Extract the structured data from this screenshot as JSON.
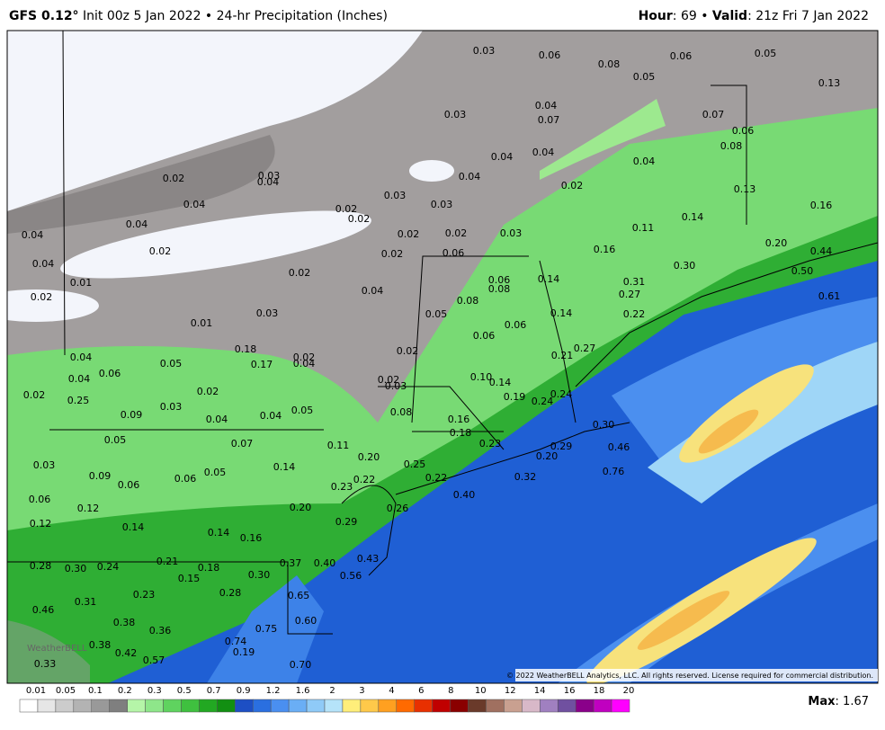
{
  "header": {
    "model": "GFS 0.12°",
    "title": "Init 00z 5 Jan 2022 • 24-hr Precipitation (Inches)",
    "hour_label": "Hour",
    "hour": ": 69 • ",
    "valid_label": "Valid",
    "valid": ": 21z Fri 7 Jan 2022"
  },
  "copyright": "© 2022 WeatherBELL Analytics, LLC. All rights reserved. License required for commercial distribution.",
  "watermark": "WeatherBELL",
  "map_labels": [
    "0.03",
    "0.06",
    "0.08",
    "0.06",
    "0.05",
    "0.05",
    "0.13",
    "0.03",
    "0.04",
    "0.07",
    "0.07",
    "0.06",
    "0.08",
    "0.04",
    "0.04",
    "0.04",
    "0.02",
    "0.03",
    "0.04",
    "0.04",
    "0.02",
    "0.13",
    "0.04",
    "0.03",
    "0.03",
    "0.16",
    "0.02",
    "0.02",
    "0.14",
    "0.04",
    "0.02",
    "0.02",
    "0.03",
    "0.11",
    "0.04",
    "0.20",
    "0.44",
    "0.02",
    "0.02",
    "0.06",
    "0.16",
    "0.04",
    "0.30",
    "0.50",
    "0.02",
    "0.01",
    "0.06",
    "0.14",
    "0.31",
    "0.02",
    "0.04",
    "0.08",
    "0.08",
    "0.27",
    "0.61",
    "0.03",
    "0.05",
    "0.14",
    "0.22",
    "0.01",
    "0.06",
    "0.06",
    "0.18",
    "0.02",
    "0.27",
    "0.21",
    "0.04",
    "0.05",
    "0.17",
    "0.02",
    "0.04",
    "0.06",
    "0.04",
    "0.02",
    "0.03",
    "0.14",
    "0.10",
    "0.02",
    "0.02",
    "0.19",
    "0.24",
    "0.24",
    "0.25",
    "0.03",
    "0.08",
    "0.05",
    "0.09",
    "0.04",
    "0.04",
    "0.16",
    "0.30",
    "0.18",
    "0.05",
    "0.07",
    "0.11",
    "0.23",
    "0.29",
    "0.46",
    "0.20",
    "0.03",
    "0.09",
    "0.14",
    "0.20",
    "0.25",
    "0.05",
    "0.06",
    "0.76",
    "0.06",
    "0.23",
    "0.22",
    "0.22",
    "0.32",
    "0.06",
    "0.12",
    "0.40",
    "0.26",
    "0.20",
    "0.12",
    "0.14",
    "0.29",
    "0.14",
    "0.16",
    "0.28",
    "0.30",
    "0.24",
    "0.21",
    "0.18",
    "0.15",
    "0.30",
    "0.37",
    "0.40",
    "0.43",
    "0.56",
    "0.23",
    "0.28",
    "0.65",
    "0.31",
    "0.46",
    "0.38",
    "0.36",
    "0.60",
    "0.75",
    "0.38",
    "0.42",
    "0.74",
    "0.19",
    "0.57",
    "0.33",
    "0.70"
  ],
  "legend": {
    "labels": [
      "0.01",
      "0.05",
      "0.1",
      "0.2",
      "0.3",
      "0.5",
      "0.7",
      "0.9",
      "1.2",
      "1.6",
      "2",
      "3",
      "4",
      "6",
      "8",
      "10",
      "12",
      "14",
      "16",
      "18",
      "20"
    ],
    "colors": [
      "#ffffff",
      "#e6e6e6",
      "#cccccc",
      "#b3b3b3",
      "#999999",
      "#7f7f7f",
      "#b5f5a8",
      "#8ee68a",
      "#5fd35f",
      "#3fc03f",
      "#22a822",
      "#128f12",
      "#1d4fc4",
      "#2a6fe0",
      "#4a8ff0",
      "#6aaef5",
      "#8fcaf7",
      "#b5e3f9",
      "#ffee7a",
      "#ffc94a",
      "#ffa020",
      "#ff6a00",
      "#e83000",
      "#c00000",
      "#8a0000",
      "#6a3a2a",
      "#a07060",
      "#c9a090",
      "#d8b8c8",
      "#a080c0",
      "#7050a0",
      "#8a008a",
      "#c000c0",
      "#ff00ff"
    ]
  },
  "max_label": "Max",
  "max": ": 1.67"
}
